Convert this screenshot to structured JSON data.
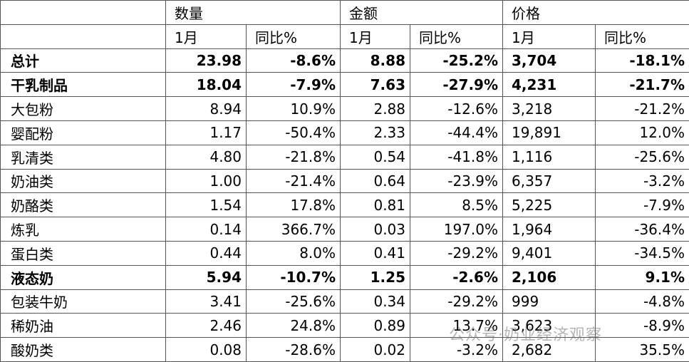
{
  "table": {
    "groups": [
      "数量",
      "金额",
      "价格"
    ],
    "subheaders": [
      "1月",
      "同比%",
      "1月",
      "同比%",
      "1月",
      "同比%"
    ],
    "rows": [
      {
        "label": "总计",
        "bold": true,
        "cells": [
          "23.98",
          "-8.6%",
          "8.88",
          "-25.2%",
          "3,704",
          "-18.1%"
        ]
      },
      {
        "label": "干乳制品",
        "bold": true,
        "cells": [
          "18.04",
          "-7.9%",
          "7.63",
          "-27.9%",
          "4,231",
          "-21.7%"
        ]
      },
      {
        "label": "大包粉",
        "cells": [
          "8.94",
          "10.9%",
          "2.88",
          "-12.6%",
          "3,218",
          "-21.2%"
        ]
      },
      {
        "label": "婴配粉",
        "cells": [
          "1.17",
          "-50.4%",
          "2.33",
          "-44.4%",
          "19,891",
          "12.0%"
        ]
      },
      {
        "label": "乳清类",
        "cells": [
          "4.80",
          "-21.8%",
          "0.54",
          "-41.8%",
          "1,116",
          "-25.6%"
        ]
      },
      {
        "label": "奶油类",
        "cells": [
          "1.00",
          "-21.4%",
          "0.64",
          "-23.9%",
          "6,357",
          "-3.2%"
        ]
      },
      {
        "label": "奶酪类",
        "cells": [
          "1.54",
          "17.8%",
          "0.81",
          "8.5%",
          "5,225",
          "-7.9%"
        ]
      },
      {
        "label": "炼乳",
        "cells": [
          "0.14",
          "366.7%",
          "0.03",
          "197.0%",
          "1,964",
          "-36.4%"
        ]
      },
      {
        "label": "蛋白类",
        "cells": [
          "0.44",
          "8.0%",
          "0.41",
          "-29.2%",
          "9,401",
          "-34.5%"
        ]
      },
      {
        "label": "液态奶",
        "bold": true,
        "cells": [
          "5.94",
          "-10.7%",
          "1.25",
          "-2.6%",
          "2,106",
          "9.1%"
        ]
      },
      {
        "label": "包装牛奶",
        "cells": [
          "3.41",
          "-25.6%",
          "0.34",
          "-29.2%",
          "999",
          "-4.8%"
        ]
      },
      {
        "label": "稀奶油",
        "cells": [
          "2.46",
          "24.8%",
          "0.89",
          "13.7%",
          "3,623",
          "-8.9%"
        ]
      },
      {
        "label": "酸奶类",
        "cells": [
          "0.08",
          "-28.6%",
          "0.02",
          "-3.2%",
          "2,682",
          "35.5%"
        ]
      }
    ]
  },
  "watermark": "公众号·奶业经济观察"
}
